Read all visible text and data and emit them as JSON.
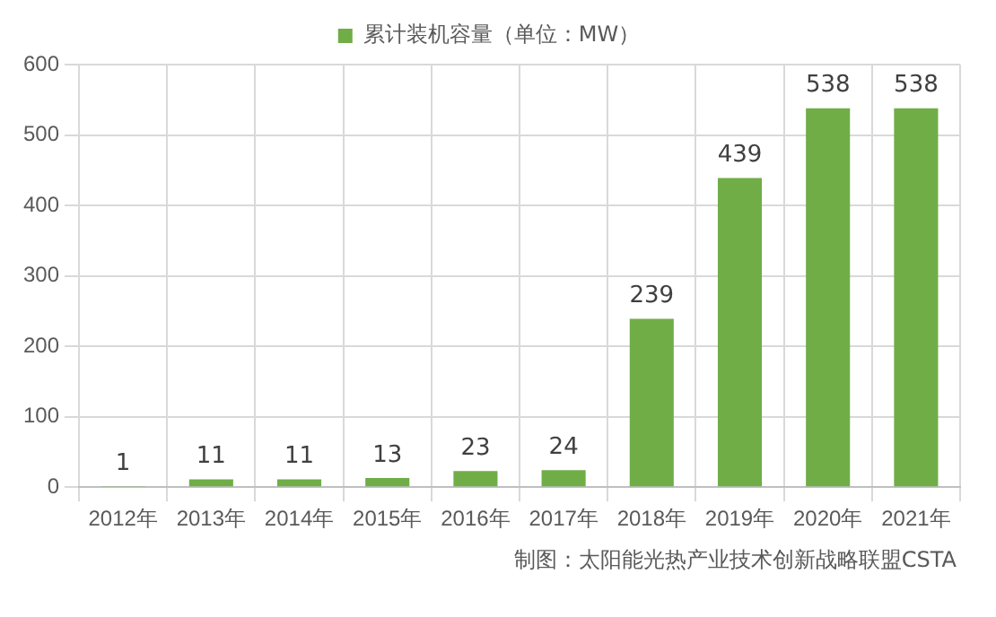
{
  "chart_data": {
    "type": "bar",
    "categories": [
      "2012年",
      "2013年",
      "2014年",
      "2015年",
      "2016年",
      "2017年",
      "2018年",
      "2019年",
      "2020年",
      "2021年"
    ],
    "series": [
      {
        "name": "累计装机容量（单位：MW）",
        "color": "#70ad47",
        "values": [
          1,
          11,
          11,
          13,
          23,
          24,
          239,
          439,
          538,
          538
        ]
      }
    ],
    "ylim": [
      0,
      600
    ],
    "yticks": [
      0,
      100,
      200,
      300,
      400,
      500,
      600
    ],
    "grid": true,
    "legend": "top",
    "data_labels": true,
    "annotations": [
      "制图：太阳能光热产业技术创新战略联盟CSTA"
    ]
  }
}
